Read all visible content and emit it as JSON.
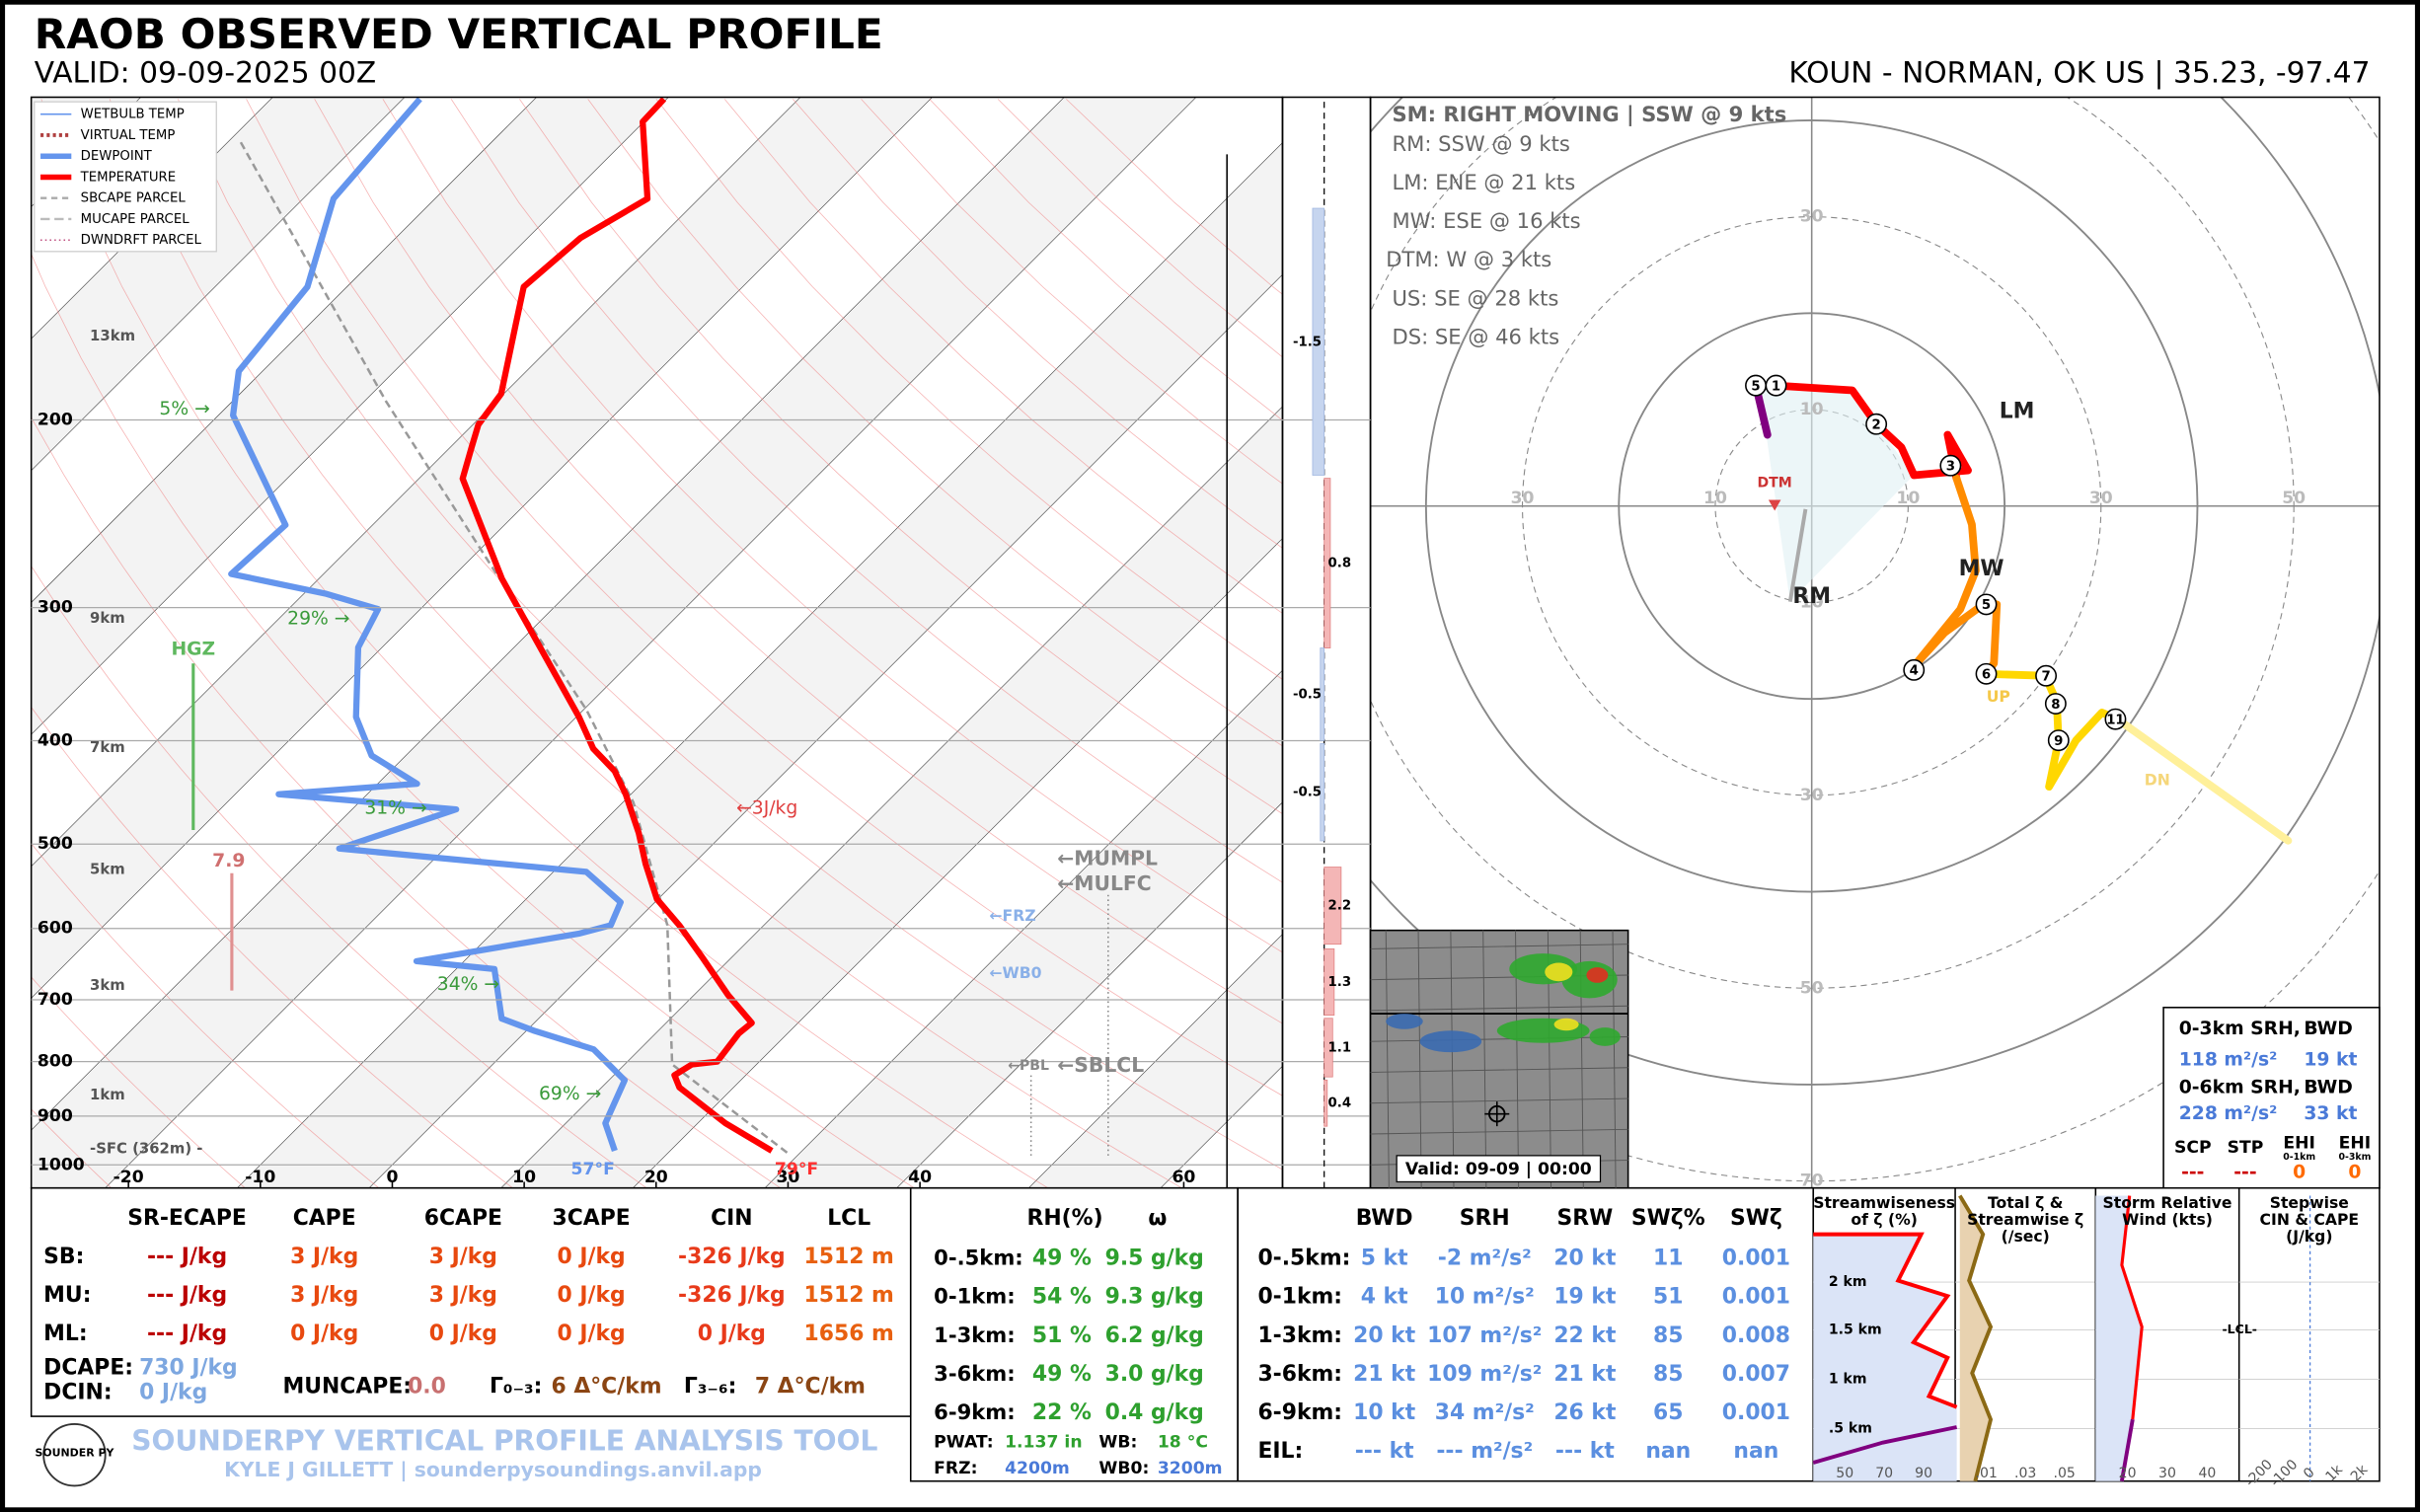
{
  "header": {
    "title": "RAOB OBSERVED VERTICAL PROFILE",
    "valid": "VALID: 09-09-2025 00Z",
    "location": "KOUN - NORMAN, OK US | 35.23, -97.47"
  },
  "skewt": {
    "legend": [
      "WETBULB TEMP",
      "VIRTUAL TEMP",
      "DEWPOINT",
      "TEMPERATURE",
      "SBCAPE PARCEL",
      "MUCAPE PARCEL",
      "DWNDRFT PARCEL"
    ],
    "pressure_ticks": [
      200,
      300,
      400,
      500,
      600,
      700,
      800,
      900,
      1000
    ],
    "temperature_ticks": [
      -20,
      -10,
      0,
      10,
      20,
      30,
      40,
      60
    ],
    "height_labels": [
      "13km",
      "9km",
      "7km",
      "5km",
      "3km",
      "1km",
      "-SFC (362m) -"
    ],
    "rh_labels": [
      "5% →",
      "29% →",
      "31% →",
      "34% →",
      "69% →"
    ],
    "annotations": {
      "hgz": "HGZ",
      "lapse_rate": 7.9,
      "cape": "←3J/kg",
      "mumpl": "←MUMPL",
      "mulfc": "←MULFC",
      "frz": "←FRZ",
      "wb0": "←WB0",
      "pbl": "←PBL",
      "sblcl": "←SBLCL",
      "sfc_dewpoint": "57°F",
      "sfc_temperature": "79°F"
    },
    "temperature": {
      "pressure": [
        970,
        914,
        846,
        824,
        805,
        800,
        753,
        736,
        693,
        638,
        596,
        563,
        522,
        488,
        449,
        427,
        407,
        380,
        327,
        282,
        227,
        212,
        202,
        189,
        163,
        150,
        135,
        124,
        105,
        100
      ],
      "values": [
        27.7,
        22.1,
        15.9,
        14.6,
        15.1,
        16.8,
        16.3,
        16.5,
        12.6,
        7.7,
        3.6,
        -0.1,
        -3.6,
        -6.5,
        -10.4,
        -13.0,
        -16.3,
        -19.8,
        -28.0,
        -36.1,
        -46.7,
        -48.4,
        -49.6,
        -50.2,
        -54.3,
        -56.6,
        -56.0,
        -53.9,
        -60.1,
        -60.2
      ]
    },
    "dewpoint": {
      "pressure": [
        970,
        914,
        833,
        779,
        748,
        729,
        655,
        644,
        607,
        596,
        567,
        531,
        505,
        464,
        449,
        439,
        413,
        380,
        327,
        301,
        291,
        279,
        251,
        198,
        180,
        150,
        124,
        100
      ],
      "values": [
        15.8,
        13.0,
        11.2,
        6.5,
        0.5,
        -2.8,
        -7.1,
        -13.6,
        -3.4,
        -1.6,
        -2.6,
        -7.5,
        -28.0,
        -22.1,
        -36.7,
        -27.0,
        -32.6,
        -36.7,
        -41.8,
        -43.2,
        -48.4,
        -57.0,
        -56.6,
        -68.9,
        -71.8,
        -73.0,
        -77.7,
        -78.7
      ]
    },
    "parcel": {
      "pressure": [
        974,
        805,
        596,
        457,
        374,
        277,
        192,
        109
      ],
      "values": [
        29.0,
        13.6,
        2.7,
        -9.2,
        -19.8,
        -37.3,
        -58.4,
        -89.4
      ]
    }
  },
  "advection": {
    "values": [
      -1.5,
      0.8,
      -0.5,
      -0.5,
      2.2,
      1.3,
      1.1,
      0.4
    ]
  },
  "hodograph": {
    "motions": [
      "SM: RIGHT MOVING | SSW @ 9 kts",
      "RM: SSW @ 9 kts",
      "LM: ENE @ 21 kts",
      "MW: ESE @ 16 kts",
      "DTM: W @ 3 kts",
      "US: SE @ 28 kts",
      "DS: SE @ 46 kts"
    ],
    "ring_labels": [
      10,
      30,
      50,
      70
    ],
    "vector_labels": [
      "LM",
      "MW",
      "RM",
      "DTM",
      "UP",
      "DN"
    ],
    "segments": [
      {
        "color": "#800080",
        "u": [
          -5.8,
          -4.6
        ],
        "v": [
          12.5,
          7.4
        ]
      },
      {
        "color": "#ff0000",
        "u": [
          -3.8,
          4.2,
          6.7,
          9.3,
          10.6,
          16.2,
          14.1,
          15.0
        ],
        "v": [
          12.5,
          12.0,
          8.5,
          6.1,
          3.2,
          3.7,
          7.4,
          2.9
        ]
      },
      {
        "color": "#ff8c00",
        "u": [
          15.0,
          16.6,
          17.0,
          15.4,
          10.6,
          13.8,
          18.2,
          19.2,
          18.9,
          18.1
        ],
        "v": [
          2.9,
          -1.9,
          -6.7,
          -10.7,
          -16.6,
          -13.1,
          -9.9,
          -10.2,
          -16.3,
          -17.4
        ]
      },
      {
        "color": "#ffd700",
        "u": [
          18.1,
          24.2,
          25.4,
          25.6,
          24.6,
          27.4,
          30.1,
          31.7
        ],
        "v": [
          -17.4,
          -17.6,
          -20.3,
          -24.3,
          -29.1,
          -24.3,
          -21.4,
          -22.1
        ]
      },
      {
        "color": "#fff09a",
        "u": [
          31.7,
          49.4
        ],
        "v": [
          -22.1,
          -34.7
        ]
      }
    ],
    "markers": {
      "labels": [
        5,
        1,
        2,
        3,
        5,
        4,
        6,
        7,
        8,
        9,
        11
      ],
      "u": [
        -5.8,
        -3.7,
        6.7,
        14.4,
        18.1,
        10.6,
        18.1,
        24.3,
        25.3,
        25.6,
        31.5
      ],
      "v": [
        12.5,
        12.5,
        8.5,
        4.2,
        -10.2,
        -17.0,
        -17.4,
        -17.6,
        -20.5,
        -24.3,
        -22.1
      ]
    }
  },
  "srh_box": {
    "rows": [
      [
        "0-3km SRH,",
        "BWD"
      ],
      [
        "118 m²/s²",
        "19 kt"
      ],
      [
        "0-6km SRH,",
        "BWD"
      ],
      [
        "228 m²/s²",
        "33 kt"
      ]
    ],
    "indices": [
      "SCP",
      "STP",
      "EHI",
      "EHI"
    ],
    "index_layers": [
      "0-1km",
      "0-3km"
    ],
    "index_values": [
      "---",
      "---",
      "0",
      "0"
    ]
  },
  "radar": {
    "valid": "Valid: 09-09 | 00:00"
  },
  "thermo_table": {
    "header": [
      "SR-ECAPE",
      "CAPE",
      "6CAPE",
      "3CAPE",
      "CIN",
      "LCL"
    ],
    "rows": [
      [
        "SB:",
        "--- J/kg",
        "3 J/kg",
        "3 J/kg",
        "0 J/kg",
        "-326 J/kg",
        "1512 m"
      ],
      [
        "MU:",
        "--- J/kg",
        "3 J/kg",
        "3 J/kg",
        "0 J/kg",
        "-326 J/kg",
        "1512 m"
      ],
      [
        "ML:",
        "--- J/kg",
        "0 J/kg",
        "0 J/kg",
        "0 J/kg",
        "0 J/kg",
        "1656 m"
      ]
    ],
    "extras": [
      [
        "DCAPE:",
        "730 J/kg"
      ],
      [
        "DCIN:",
        "0 J/kg"
      ],
      [
        "MUNCAPE:",
        "0.0"
      ],
      [
        "Γ₀₋₃:",
        "6 Δ°C/km"
      ],
      [
        "Γ₃₋₆:",
        "7 Δ°C/km"
      ]
    ]
  },
  "moisture_table": {
    "header": [
      "RH(%)",
      "ω"
    ],
    "rows": [
      [
        "0-.5km:",
        "49 %",
        "9.5 g/kg"
      ],
      [
        "0-1km:",
        "54 %",
        "9.3 g/kg"
      ],
      [
        "1-3km:",
        "51 %",
        "6.2 g/kg"
      ],
      [
        "3-6km:",
        "49 %",
        "3.0 g/kg"
      ],
      [
        "6-9km:",
        "22 %",
        "0.4 g/kg"
      ]
    ],
    "extras": [
      [
        "PWAT:",
        "1.137 in",
        "WB:",
        "18 °C"
      ],
      [
        "FRZ:",
        "4200m",
        "WB0:",
        "3200m"
      ]
    ]
  },
  "kinematic_table": {
    "header": [
      "BWD",
      "SRH",
      "SRW",
      "SWζ%",
      "SWζ"
    ],
    "rows": [
      [
        "0-.5km:",
        "5 kt",
        "-2 m²/s²",
        "20 kt",
        "11",
        "0.001"
      ],
      [
        "0-1km:",
        "4 kt",
        "10 m²/s²",
        "19 kt",
        "51",
        "0.001"
      ],
      [
        "1-3km:",
        "20 kt",
        "107 m²/s²",
        "22 kt",
        "85",
        "0.008"
      ],
      [
        "3-6km:",
        "21 kt",
        "109 m²/s²",
        "21 kt",
        "85",
        "0.007"
      ],
      [
        "6-9km:",
        "10 kt",
        "34 m²/s²",
        "26 kt",
        "65",
        "0.001"
      ],
      [
        "EIL:",
        "--- kt",
        "--- m²/s²",
        "--- kt",
        "nan",
        "nan"
      ]
    ]
  },
  "panels": [
    {
      "title_lines": [
        "Streamwiseness",
        "of ζ (%)"
      ],
      "ticks": [
        "50",
        "70",
        "90"
      ],
      "heights": [
        "2 km",
        "1.5 km",
        "1 km",
        ".5 km"
      ]
    },
    {
      "title_lines": [
        "Total ζ &",
        "Streamwise ζ",
        "(/sec)"
      ],
      "ticks": [
        ".01",
        ".03",
        ".05"
      ]
    },
    {
      "title_lines": [
        "Storm Relative",
        "Wind (kts)"
      ],
      "ticks": [
        "20",
        "30",
        "40"
      ],
      "note": "-LCL-"
    },
    {
      "title_lines": [
        "Stepwise",
        "CIN & CAPE",
        "(J/kg)"
      ],
      "ticks": [
        "-200",
        "-100",
        "0",
        "1k",
        "2k"
      ]
    }
  ],
  "footer": {
    "logo": "SOUNDER PY",
    "title": "SOUNDERPY VERTICAL PROFILE ANALYSIS TOOL",
    "credit": "KYLE J GILLETT | sounderpysoundings.anvil.app"
  }
}
